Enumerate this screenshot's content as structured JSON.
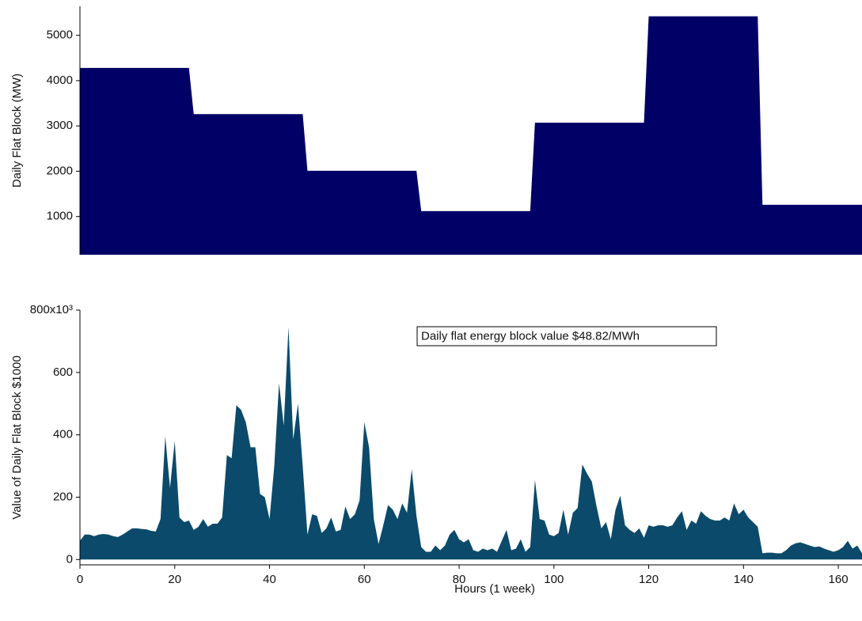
{
  "chart_data": [
    {
      "type": "area",
      "ylabel": "Daily Flat Block (MW)",
      "color": "#000066",
      "x": [
        0,
        23,
        24,
        47,
        48,
        71,
        72,
        95,
        96,
        119,
        120,
        143,
        144,
        165
      ],
      "values": [
        4280,
        4280,
        3260,
        3260,
        2010,
        2010,
        1120,
        1120,
        3070,
        3070,
        5420,
        5420,
        1260,
        1260
      ],
      "xlim": [
        0,
        165
      ],
      "ylim": [
        157,
        5640
      ],
      "yticks": [
        1000,
        2000,
        3000,
        4000,
        5000
      ]
    },
    {
      "type": "area",
      "ylabel": "Value of Daily Flat Block $1000",
      "xlabel": "Hours (1 week)",
      "color": "#0b4a6b",
      "annotation": "Daily flat energy block value $48.82/MWh",
      "x": [
        0,
        1,
        2,
        3,
        4,
        5,
        6,
        7,
        8,
        9,
        10,
        11,
        12,
        13,
        14,
        15,
        16,
        17,
        18,
        19,
        20,
        21,
        22,
        23,
        24,
        25,
        26,
        27,
        28,
        29,
        30,
        31,
        32,
        33,
        34,
        35,
        36,
        37,
        38,
        39,
        40,
        41,
        42,
        43,
        44,
        45,
        46,
        47,
        48,
        49,
        50,
        51,
        52,
        53,
        54,
        55,
        56,
        57,
        58,
        59,
        60,
        61,
        62,
        63,
        64,
        65,
        66,
        67,
        68,
        69,
        70,
        71,
        72,
        73,
        74,
        75,
        76,
        77,
        78,
        79,
        80,
        81,
        82,
        83,
        84,
        85,
        86,
        87,
        88,
        89,
        90,
        91,
        92,
        93,
        94,
        95,
        96,
        97,
        98,
        99,
        100,
        101,
        102,
        103,
        104,
        105,
        106,
        107,
        108,
        109,
        110,
        111,
        112,
        113,
        114,
        115,
        116,
        117,
        118,
        119,
        120,
        121,
        122,
        123,
        124,
        125,
        126,
        127,
        128,
        129,
        130,
        131,
        132,
        133,
        134,
        135,
        136,
        137,
        138,
        139,
        140,
        141,
        142,
        143,
        144,
        145,
        146,
        147,
        148,
        149,
        150,
        151,
        152,
        153,
        154,
        155,
        156,
        157,
        158,
        159,
        160,
        161,
        162,
        163,
        164,
        165
      ],
      "values": [
        60,
        80,
        80,
        75,
        80,
        82,
        80,
        75,
        72,
        80,
        90,
        100,
        100,
        98,
        97,
        92,
        90,
        130,
        395,
        230,
        380,
        135,
        120,
        125,
        95,
        105,
        130,
        105,
        115,
        115,
        135,
        335,
        325,
        495,
        480,
        440,
        360,
        360,
        210,
        200,
        130,
        300,
        565,
        430,
        745,
        385,
        500,
        300,
        80,
        145,
        140,
        85,
        100,
        135,
        90,
        95,
        170,
        130,
        145,
        190,
        440,
        360,
        130,
        50,
        110,
        175,
        160,
        130,
        180,
        150,
        290,
        140,
        40,
        25,
        25,
        45,
        30,
        45,
        80,
        95,
        65,
        55,
        65,
        30,
        25,
        35,
        30,
        35,
        25,
        60,
        95,
        30,
        35,
        65,
        25,
        40,
        255,
        130,
        125,
        80,
        75,
        85,
        160,
        80,
        150,
        165,
        305,
        275,
        250,
        170,
        100,
        120,
        65,
        160,
        205,
        110,
        95,
        85,
        100,
        70,
        110,
        105,
        110,
        110,
        105,
        110,
        135,
        155,
        95,
        125,
        115,
        155,
        140,
        130,
        125,
        125,
        135,
        125,
        180,
        145,
        160,
        135,
        120,
        105,
        20,
        22,
        22,
        20,
        20,
        30,
        45,
        52,
        55,
        50,
        45,
        40,
        42,
        35,
        30,
        25,
        30,
        40,
        60,
        35,
        45,
        20
      ],
      "xlim": [
        0,
        165
      ],
      "ylim": [
        -17,
        800
      ],
      "xticks": [
        0,
        20,
        40,
        60,
        80,
        100,
        120,
        140,
        160
      ],
      "yticks": [
        0,
        200,
        400,
        600,
        {
          "value": 800,
          "label": "800x10³"
        }
      ]
    }
  ]
}
